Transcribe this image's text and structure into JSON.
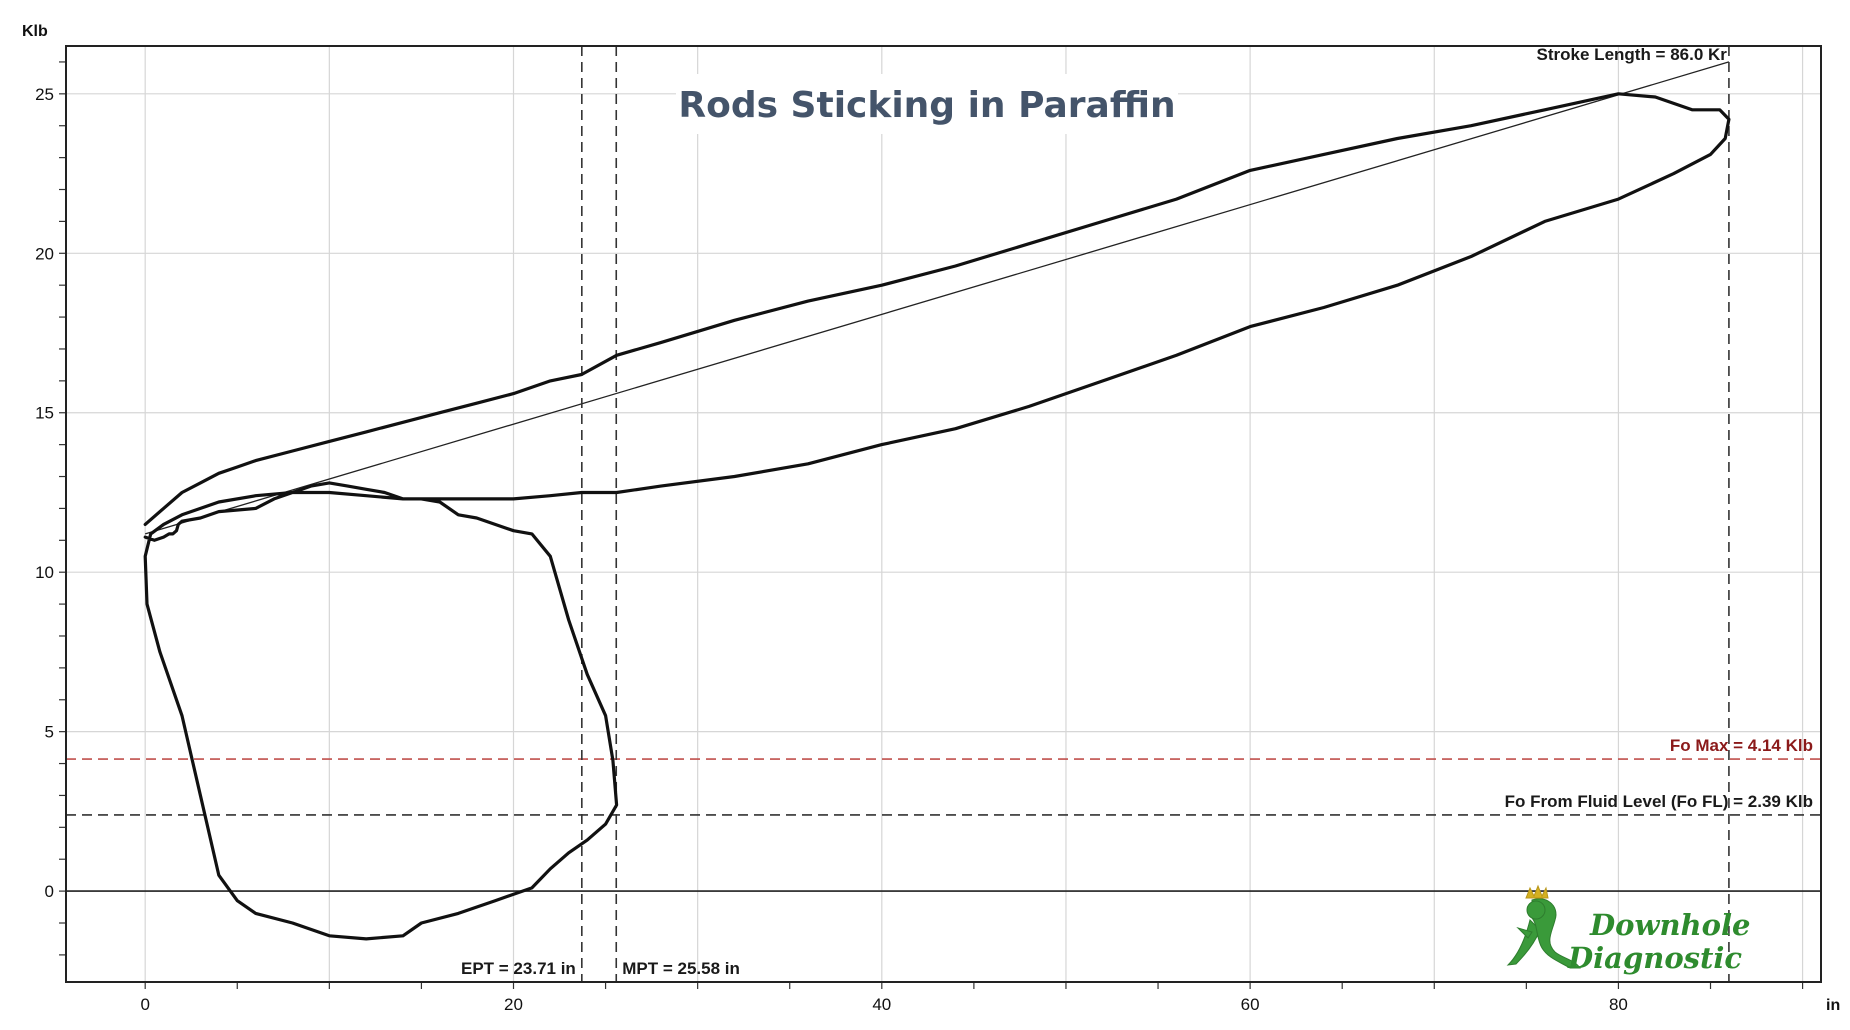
{
  "chart_data": {
    "type": "line",
    "title": "Rods Sticking in Paraffin",
    "xlabel": "in",
    "ylabel": "Klb",
    "xlim": [
      -4.3,
      91
    ],
    "ylim": [
      -2.85,
      26.5
    ],
    "xticks": [
      0,
      20,
      40,
      60,
      80
    ],
    "yticks": [
      0,
      5,
      10,
      15,
      20,
      25
    ],
    "grid": true,
    "series": [
      {
        "type": "card-loop",
        "x": [
          0,
          1,
          2,
          3,
          4,
          5,
          6,
          8,
          10,
          12,
          14,
          16,
          18,
          20,
          22,
          23.7,
          25.6,
          28,
          32,
          36,
          40,
          44,
          48,
          52,
          56,
          60,
          64,
          68,
          72,
          76,
          80,
          82,
          84,
          85.5,
          86,
          85.8,
          85,
          83,
          80,
          76,
          72,
          68,
          64,
          60,
          56,
          52,
          48,
          44,
          40,
          36,
          32,
          28,
          25.6,
          23.7,
          22,
          20,
          18,
          16,
          14,
          12,
          10,
          8,
          6,
          4,
          3,
          2,
          1,
          0.3,
          0,
          0.1,
          0.8,
          2,
          3,
          4,
          5,
          6,
          8,
          10,
          12,
          14,
          15,
          17,
          19,
          21,
          22,
          23,
          24,
          25,
          25.6,
          25.4,
          25,
          24,
          23,
          22,
          21,
          20,
          19,
          18,
          17,
          16,
          15,
          14,
          13,
          12,
          11,
          10,
          9,
          8,
          7,
          6,
          4,
          3,
          2,
          1.8,
          1.7,
          1.5,
          1.3,
          1,
          0.5,
          0
        ],
        "y": [
          11.5,
          12.0,
          12.5,
          12.8,
          13.1,
          13.3,
          13.5,
          13.8,
          14.1,
          14.4,
          14.7,
          15.0,
          15.3,
          15.6,
          16.0,
          16.2,
          16.8,
          17.2,
          17.9,
          18.5,
          19.0,
          19.6,
          20.3,
          21.0,
          21.7,
          22.6,
          23.1,
          23.6,
          24.0,
          24.5,
          25.0,
          24.9,
          24.5,
          24.5,
          24.2,
          23.6,
          23.1,
          22.5,
          21.7,
          21.0,
          19.9,
          19.0,
          18.3,
          17.7,
          16.8,
          16.0,
          15.2,
          14.5,
          14.0,
          13.4,
          13.0,
          12.7,
          12.5,
          12.5,
          12.4,
          12.3,
          12.3,
          12.3,
          12.3,
          12.4,
          12.5,
          12.5,
          12.4,
          12.2,
          12.0,
          11.8,
          11.5,
          11.2,
          10.5,
          9.0,
          7.5,
          5.5,
          3.0,
          0.5,
          -0.3,
          -0.7,
          -1.0,
          -1.4,
          -1.5,
          -1.4,
          -1.0,
          -0.7,
          -0.3,
          0.1,
          0.7,
          1.2,
          1.6,
          2.1,
          2.7,
          4.1,
          5.5,
          6.8,
          8.5,
          10.5,
          11.2,
          11.3,
          11.5,
          11.7,
          11.8,
          12.2,
          12.3,
          12.3,
          12.5,
          12.6,
          12.7,
          12.8,
          12.7,
          12.5,
          12.3,
          12.0,
          11.9,
          11.7,
          11.6,
          11.5,
          11.3,
          11.2,
          11.2,
          11.1,
          11.0,
          11.1
        ]
      },
      {
        "type": "reference-line",
        "x": [
          0,
          86
        ],
        "y": [
          11.2,
          26.0
        ]
      }
    ],
    "vertical_lines": [
      {
        "x": 23.71,
        "label": "EPT = 23.71 in"
      },
      {
        "x": 25.58,
        "label": "MPT = 25.58 in"
      },
      {
        "x": 86.0,
        "label": "Stroke Length = 86.0 Kr"
      }
    ],
    "horizontal_lines": [
      {
        "y": 4.14,
        "label": "Fo Max = 4.14 Klb",
        "color": "#c0504d"
      },
      {
        "y": 2.39,
        "label": "Fo From Fluid Level (Fo FL) = 2.39 Klb",
        "color": "#333333"
      },
      {
        "y": 0,
        "label": "",
        "color": "#222222"
      }
    ]
  },
  "logo": {
    "line1": "Downhole",
    "line2": "Diagnostic",
    "color": "#2e8b2e"
  }
}
